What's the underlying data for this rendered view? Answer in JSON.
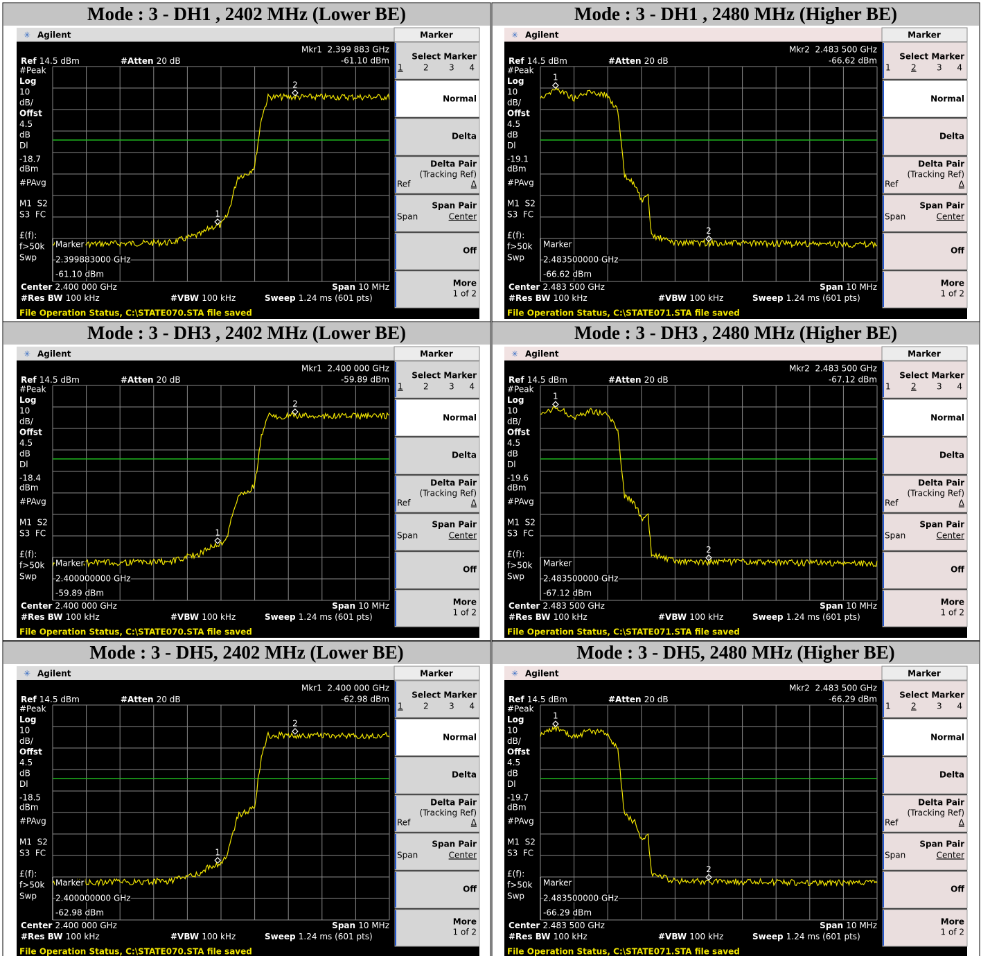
{
  "analyzer": {
    "brand": "Agilent",
    "menu": "Marker",
    "ref_label": "Ref",
    "ref_value": "14.5 dBm",
    "atten_label": "#Atten",
    "atten_value": "20 dB",
    "side_top": [
      "#Peak",
      "Log",
      "10",
      "dB/",
      "Offst",
      "4.5",
      "dB",
      "Dl"
    ],
    "side_bottom": [
      "dBm",
      "#PAvg",
      "M1  S2",
      "S3  FC",
      "£(f):",
      "f>50k",
      "Swp"
    ],
    "marker_word": "Marker",
    "center_label": "Center",
    "span_label": "Span",
    "span_value": "10 MHz",
    "rbw_label": "#Res BW",
    "rbw_value": "100 kHz",
    "vbw_label": "#VBW",
    "vbw_value": "100 kHz",
    "sweep_label": "Sweep",
    "sweep_value": "1.24 ms (601 pts)",
    "select_marker": "Select Marker",
    "marker_numbers": [
      "1",
      "2",
      "3",
      "4"
    ],
    "normal": "Normal",
    "delta": "Delta",
    "delta_pair": "Delta Pair",
    "tracking_ref": "(Tracking Ref)",
    "ref": "Ref",
    "delta_sym": "Δ",
    "span_pair": "Span Pair",
    "span": "Span",
    "center": "Center",
    "off": "Off",
    "more": "More",
    "page": "1 of 2"
  },
  "panels": [
    {
      "title": "Mode : 3 - DH1 , 2402 MHz (Lower BE)",
      "mkr": "Mkr1  2.399 883 GHz",
      "mkr_level": "-61.10 dBm",
      "dl": "-18.7",
      "marker_freq": "2.399883000 GHz",
      "center": "2.400 000 GHz",
      "status": "File Operation Status, C:\\STATE070.STA file saved"
    },
    {
      "title": "Mode : 3 - DH1 , 2480 MHz (Higher BE)",
      "mkr": "Mkr2  2.483 500 GHz",
      "mkr_level": "-66.62 dBm",
      "dl": "-19.1",
      "marker_freq": "2.483500000 GHz",
      "center": "2.483 500 GHz",
      "status": "File Operation Status, C:\\STATE071.STA file saved"
    },
    {
      "title": "Mode : 3 - DH3 , 2402 MHz (Lower BE)",
      "mkr": "Mkr1  2.400 000 GHz",
      "mkr_level": "-59.89 dBm",
      "dl": "-18.4",
      "marker_freq": "2.400000000 GHz",
      "center": "2.400 000 GHz",
      "status": "File Operation Status, C:\\STATE070.STA file saved"
    },
    {
      "title": "Mode : 3 - DH3 , 2480 MHz (Higher BE)",
      "mkr": "Mkr2  2.483 500 GHz",
      "mkr_level": "-67.12 dBm",
      "dl": "-19.6",
      "marker_freq": "2.483500000 GHz",
      "center": "2.483 500 GHz",
      "status": "File Operation Status, C:\\STATE071.STA file saved"
    },
    {
      "title": "Mode : 3 - DH5, 2402 MHz (Lower BE)",
      "mkr": "Mkr1  2.400 000 GHz",
      "mkr_level": "-62.98 dBm",
      "dl": "-18.5",
      "marker_freq": "2.400000000 GHz",
      "center": "2.400 000 GHz",
      "status": "File Operation Status, C:\\STATE070.STA file saved"
    },
    {
      "title": "Mode : 3 - DH5, 2480 MHz (Higher BE)",
      "mkr": "Mkr2  2.483 500 GHz",
      "mkr_level": "-66.29 dBm",
      "dl": "-19.7",
      "marker_freq": "2.483500000 GHz",
      "center": "2.483 500 GHz",
      "status": "File Operation Status, C:\\STATE071.STA file saved"
    }
  ]
}
